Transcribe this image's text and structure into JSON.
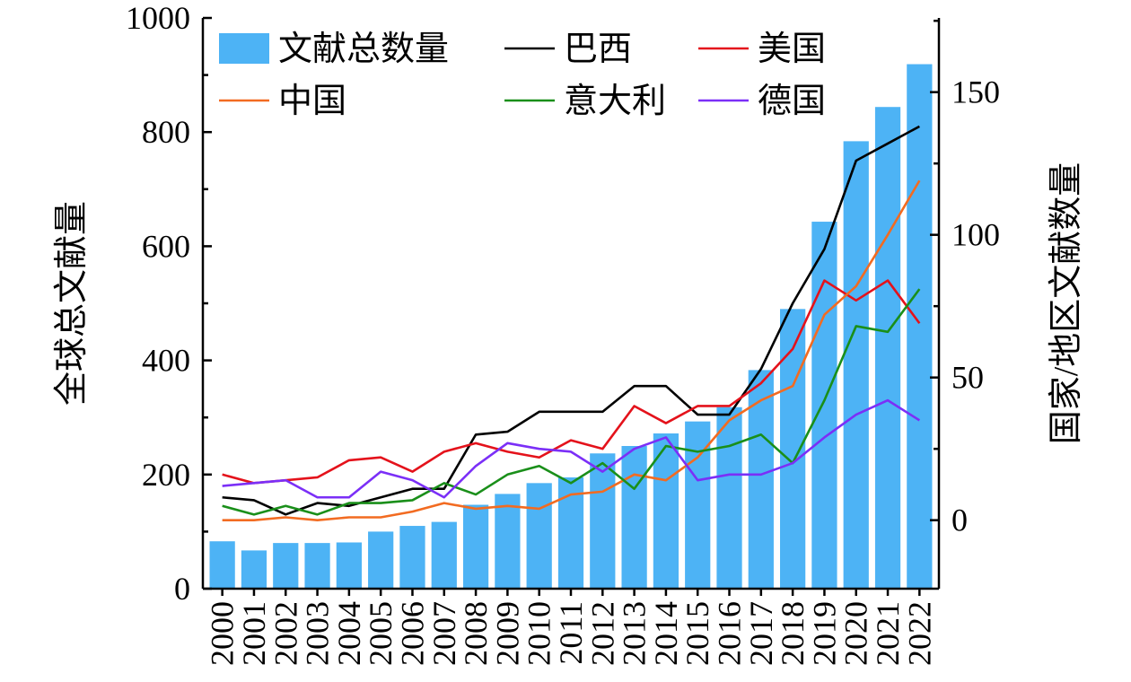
{
  "chart_data": {
    "type": "bar+line",
    "categories": [
      "2000",
      "2001",
      "2002",
      "2003",
      "2004",
      "2005",
      "2006",
      "2007",
      "2008",
      "2009",
      "2010",
      "2011",
      "2012",
      "2013",
      "2014",
      "2015",
      "2016",
      "2017",
      "2018",
      "2019",
      "2020",
      "2021",
      "2022"
    ],
    "bars": {
      "name": "文献总数量",
      "axis": "left",
      "color": "#4db3f5",
      "values": [
        83,
        67,
        80,
        80,
        81,
        100,
        110,
        117,
        147,
        166,
        185,
        195,
        237,
        250,
        272,
        293,
        318,
        383,
        490,
        643,
        784,
        844,
        919
      ]
    },
    "series": [
      {
        "name": "巴西",
        "color": "#000000",
        "axis": "right",
        "values": [
          8,
          7,
          2,
          6,
          5,
          8,
          11,
          11,
          30,
          31,
          38,
          38,
          38,
          47,
          47,
          37,
          37,
          53,
          76,
          95,
          126,
          132,
          138
        ]
      },
      {
        "name": "美国",
        "color": "#e4121b",
        "axis": "right",
        "values": [
          16,
          13,
          14,
          15,
          21,
          22,
          17,
          24,
          27,
          24,
          22,
          28,
          25,
          40,
          34,
          40,
          40,
          48,
          60,
          84,
          77,
          84,
          69
        ]
      },
      {
        "name": "中国",
        "color": "#f26b21",
        "axis": "right",
        "values": [
          0,
          0,
          1,
          0,
          1,
          1,
          3,
          6,
          4,
          5,
          4,
          9,
          10,
          16,
          14,
          22,
          35,
          42,
          47,
          72,
          82,
          100,
          119
        ]
      },
      {
        "name": "意大利",
        "color": "#1a8f1a",
        "axis": "right",
        "values": [
          5,
          2,
          5,
          2,
          6,
          6,
          7,
          13,
          9,
          16,
          19,
          13,
          20,
          11,
          26,
          24,
          26,
          30,
          20,
          42,
          68,
          66,
          81
        ]
      },
      {
        "name": "德国",
        "color": "#7b2ff7",
        "axis": "right",
        "values": [
          12,
          13,
          14,
          8,
          8,
          17,
          14,
          8,
          19,
          27,
          25,
          24,
          17,
          25,
          29,
          14,
          16,
          16,
          20,
          29,
          37,
          42,
          35
        ]
      }
    ],
    "left_axis": {
      "label": "全球总文献量",
      "ylim": [
        0,
        1000
      ],
      "ticks": [
        "0",
        "200",
        "400",
        "600",
        "800",
        "1000"
      ]
    },
    "right_axis": {
      "label": "国家/地区文献数量",
      "ylim": [
        -24,
        176
      ],
      "ticks": [
        "0",
        "50",
        "100",
        "150"
      ]
    },
    "legend": {
      "placement": "top-inside"
    },
    "grid": false
  }
}
